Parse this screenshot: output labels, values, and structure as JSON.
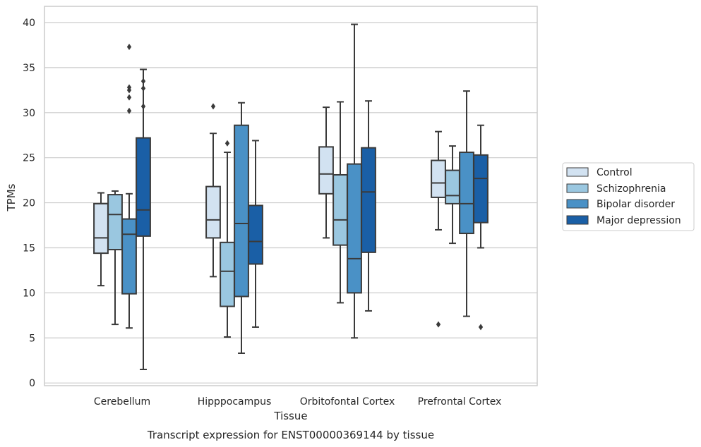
{
  "colors": {
    "control": "#d2e2f1",
    "schizophrenia": "#9ac7e0",
    "bipolar": "#4a91c6",
    "depression": "#1a5fa6",
    "box_edge": "#3a3a3a",
    "grid": "#cccccc"
  },
  "chart_data": {
    "type": "box",
    "caption": "Transcript expression for ENST00000369144 by tissue",
    "xlabel": "Tissue",
    "ylabel": "TPMs",
    "ylim": [
      -0.3,
      41.8
    ],
    "yticks": [
      0,
      5,
      10,
      15,
      20,
      25,
      30,
      35,
      40
    ],
    "grid": true,
    "legend_position": "right",
    "categories": [
      "Cerebellum",
      "Hipppocampus",
      "Orbitofontal Cortex",
      "Prefrontal Cortex"
    ],
    "series": [
      {
        "name": "Control",
        "boxes": [
          {
            "whislo": 10.8,
            "q1": 14.4,
            "med": 16.1,
            "q3": 19.9,
            "whishi": 21.1,
            "fliers": []
          },
          {
            "whislo": 11.8,
            "q1": 16.1,
            "med": 18.1,
            "q3": 21.8,
            "whishi": 27.7,
            "fliers": [
              30.7
            ]
          },
          {
            "whislo": 16.1,
            "q1": 21.0,
            "med": 23.2,
            "q3": 26.2,
            "whishi": 30.6,
            "fliers": []
          },
          {
            "whislo": 17.0,
            "q1": 20.6,
            "med": 22.2,
            "q3": 24.7,
            "whishi": 27.9,
            "fliers": [
              6.5
            ]
          }
        ]
      },
      {
        "name": "Schizophrenia",
        "boxes": [
          {
            "whislo": 6.5,
            "q1": 14.8,
            "med": 18.7,
            "q3": 20.9,
            "whishi": 21.3,
            "fliers": []
          },
          {
            "whislo": 5.1,
            "q1": 8.5,
            "med": 12.4,
            "q3": 15.6,
            "whishi": 25.6,
            "fliers": [
              26.6
            ]
          },
          {
            "whislo": 8.9,
            "q1": 15.3,
            "med": 18.1,
            "q3": 23.1,
            "whishi": 31.2,
            "fliers": []
          },
          {
            "whislo": 15.5,
            "q1": 19.9,
            "med": 20.8,
            "q3": 23.6,
            "whishi": 26.3,
            "fliers": []
          }
        ]
      },
      {
        "name": "Bipolar disorder",
        "boxes": [
          {
            "whislo": 6.1,
            "q1": 9.9,
            "med": 16.5,
            "q3": 18.2,
            "whishi": 21.0,
            "fliers": [
              32.5,
              31.7,
              32.8,
              37.3,
              30.2
            ]
          },
          {
            "whislo": 3.3,
            "q1": 9.6,
            "med": 17.7,
            "q3": 28.6,
            "whishi": 31.1,
            "fliers": []
          },
          {
            "whislo": 5.0,
            "q1": 10.0,
            "med": 13.8,
            "q3": 24.3,
            "whishi": 39.8,
            "fliers": []
          },
          {
            "whislo": 7.4,
            "q1": 16.6,
            "med": 19.9,
            "q3": 25.6,
            "whishi": 32.4,
            "fliers": []
          }
        ]
      },
      {
        "name": "Major depression",
        "boxes": [
          {
            "whislo": 1.5,
            "q1": 16.3,
            "med": 19.2,
            "q3": 27.2,
            "whishi": 34.8,
            "fliers": [
              33.5,
              32.7,
              30.7
            ]
          },
          {
            "whislo": 6.2,
            "q1": 13.2,
            "med": 15.7,
            "q3": 19.7,
            "whishi": 26.9,
            "fliers": []
          },
          {
            "whislo": 8.0,
            "q1": 14.5,
            "med": 21.2,
            "q3": 26.1,
            "whishi": 31.3,
            "fliers": []
          },
          {
            "whislo": 15.0,
            "q1": 17.8,
            "med": 22.7,
            "q3": 25.3,
            "whishi": 28.6,
            "fliers": [
              6.2
            ]
          }
        ]
      }
    ]
  }
}
